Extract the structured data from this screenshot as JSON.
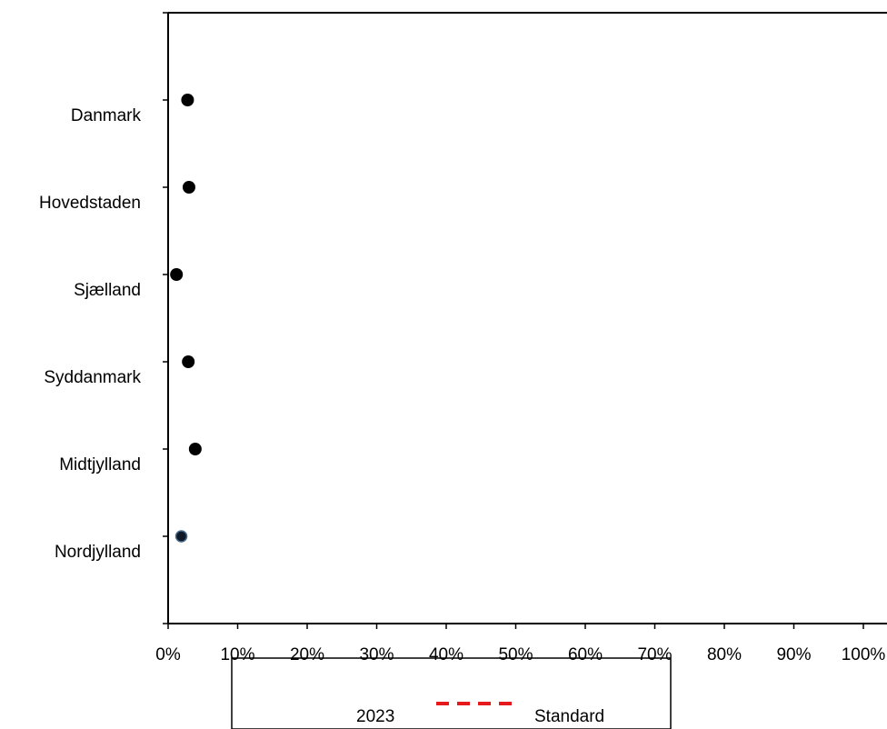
{
  "chart_data": {
    "type": "scatter",
    "orientation": "horizontal",
    "categories": [
      "Danmark",
      "Hovedstaden",
      "Sjælland",
      "Syddanmark",
      "Midtjylland",
      "Nordjylland"
    ],
    "series": [
      {
        "name": "2023",
        "values": [
          2.8,
          3.0,
          1.2,
          2.9,
          3.9,
          1.9
        ],
        "marker": "circle",
        "color": "#000000"
      }
    ],
    "reference_line": {
      "name": "Standard",
      "style": "dashed",
      "color": "#e41a1c"
    },
    "xlim": [
      0,
      100
    ],
    "x_ticks": [
      "0%",
      "10%",
      "20%",
      "30%",
      "40%",
      "50%",
      "60%",
      "70%",
      "80%",
      "90%",
      "100%"
    ],
    "grid": false,
    "legend_position": "bottom"
  }
}
